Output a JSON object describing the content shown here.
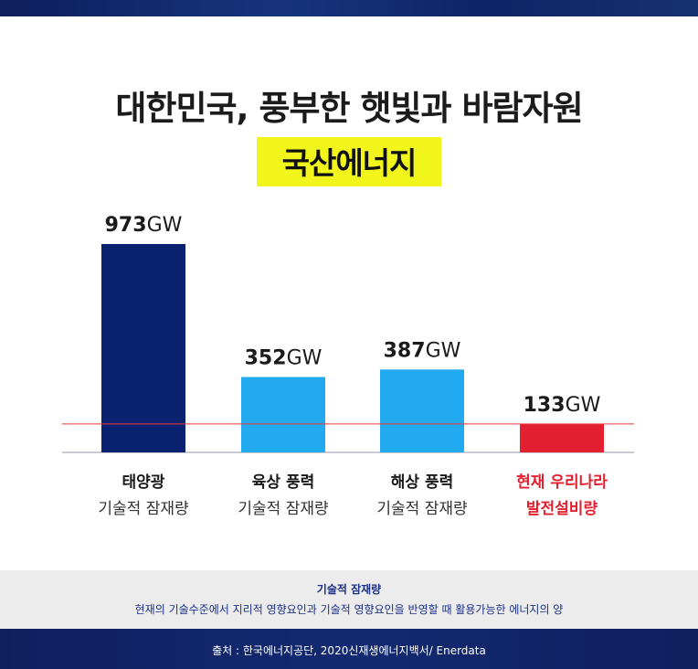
{
  "header": {
    "title": "대한민국, 풍부한 햇빛과 바람자원",
    "subtitle": "국산에너지"
  },
  "colors": {
    "navy": "#0b2270",
    "sky": "#22aaf0",
    "red": "#e2202f",
    "highlight": "#f2f51c",
    "reference_line": "#e53935"
  },
  "chart_data": {
    "type": "bar",
    "unit": "GW",
    "ylim": [
      0,
      1000
    ],
    "grid": false,
    "reference_line": 133,
    "categories": [
      {
        "line1": "태양광",
        "line2": "기술적 잠재량",
        "value": 973,
        "color": "#0b2270",
        "label_color": "#1a1a1a"
      },
      {
        "line1": "육상 풍력",
        "line2": "기술적 잠재량",
        "value": 352,
        "color": "#22aaf0",
        "label_color": "#1a1a1a"
      },
      {
        "line1": "해상 풍력",
        "line2": "기술적 잠재량",
        "value": 387,
        "color": "#22aaf0",
        "label_color": "#1a1a1a"
      },
      {
        "line1": "현재 우리나라",
        "line2": "발전설비량",
        "value": 133,
        "color": "#e2202f",
        "label_color": "#e2202f"
      }
    ]
  },
  "note": {
    "title": "기술적 잠재량",
    "body": "현재의 기술수준에서 지리적 영향요인과 기술적 영향요인을 반영할 때 활용가능한 에너지의 양"
  },
  "source": "출처 : 한국에너지공단, 2020신재생에너지백서/ Enerdata"
}
